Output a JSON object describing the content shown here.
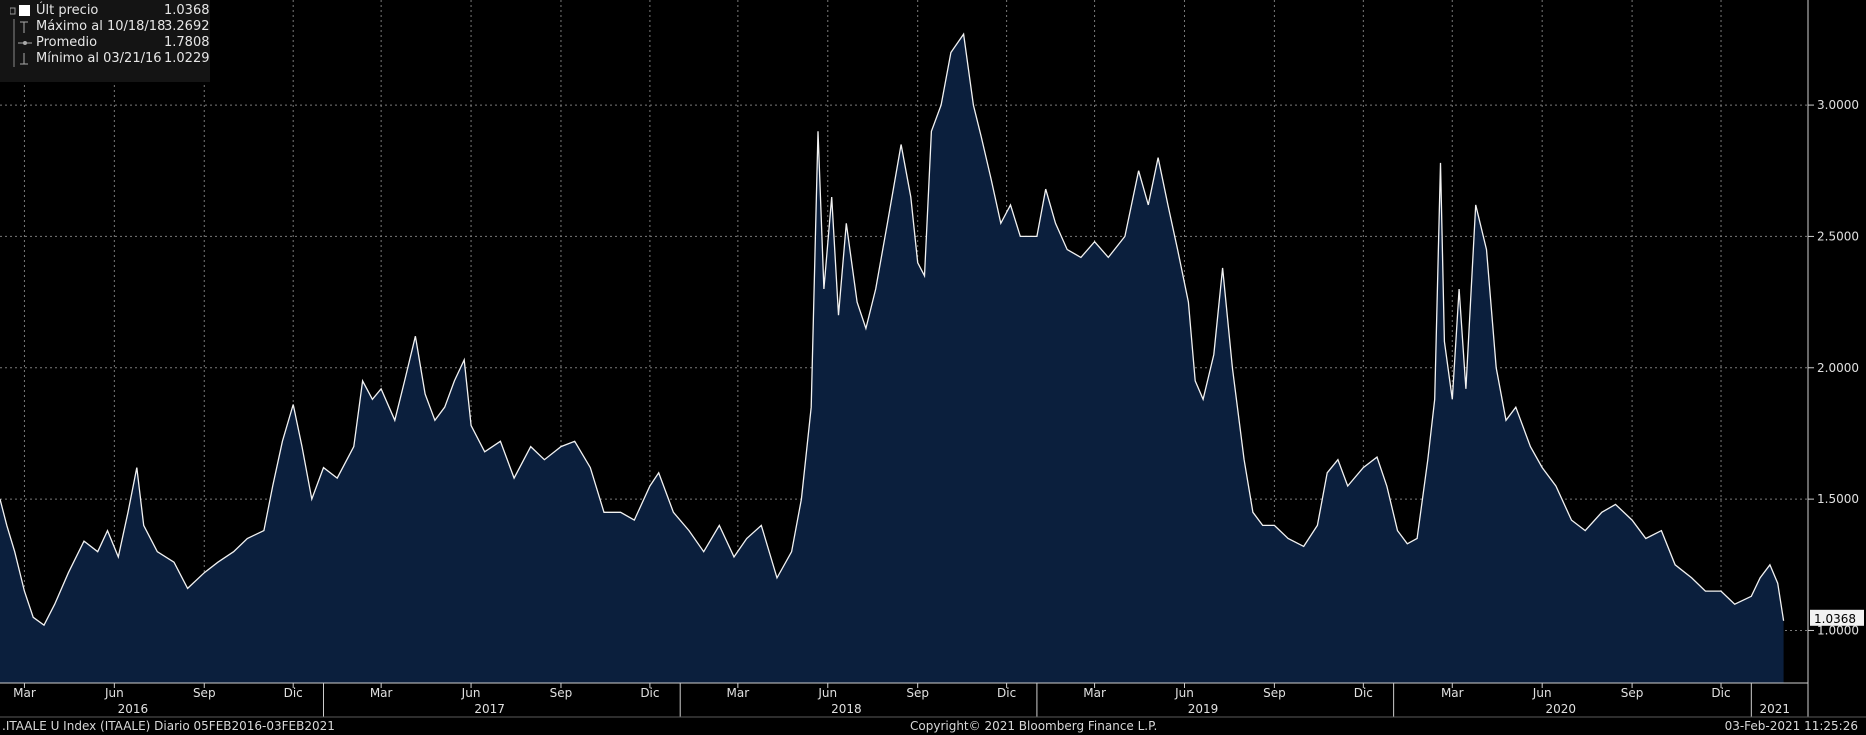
{
  "colors": {
    "background": "#000000",
    "line": "#f2f2f2",
    "fill": "#0b1f3d",
    "grid": "#7a7a7a",
    "legend_bg": "#141414"
  },
  "legend": [
    {
      "icon": "square-icon",
      "label": "Últ precio",
      "value": "1.0368"
    },
    {
      "icon": "max-marker-icon",
      "label": "Máximo al 10/18/18",
      "value": "3.2692"
    },
    {
      "icon": "average-marker-icon",
      "label": "Promedio",
      "value": "1.7808"
    },
    {
      "icon": "min-marker-icon",
      "label": "Mínimo al 03/21/16",
      "value": "1.0229"
    }
  ],
  "footer": {
    "left": ".ITAALE U Index (ITAALE)  Diario 05FEB2016-03FEB2021",
    "center": "Copyright© 2021 Bloomberg Finance L.P.",
    "right": "03-Feb-2021 11:25:26"
  },
  "chart_data": {
    "type": "area",
    "y_axis_side": "right",
    "ylim": [
      0.8,
      3.4
    ],
    "y_ticks": [
      {
        "value": 1.0,
        "label": "1.0000"
      },
      {
        "value": 1.5,
        "label": "1.5000"
      },
      {
        "value": 2.0,
        "label": "2.0000"
      },
      {
        "value": 2.5,
        "label": "2.5000"
      },
      {
        "value": 3.0,
        "label": "3.0000"
      }
    ],
    "last_price_label": "1.0368",
    "xlim": [
      "2016-02-05",
      "2021-02-28"
    ],
    "month_ticks": [
      {
        "date": "2016-03-01",
        "label": "Mar"
      },
      {
        "date": "2016-06-01",
        "label": "Jun"
      },
      {
        "date": "2016-09-01",
        "label": "Sep"
      },
      {
        "date": "2016-12-01",
        "label": "Dic"
      },
      {
        "date": "2017-03-01",
        "label": "Mar"
      },
      {
        "date": "2017-06-01",
        "label": "Jun"
      },
      {
        "date": "2017-09-01",
        "label": "Sep"
      },
      {
        "date": "2017-12-01",
        "label": "Dic"
      },
      {
        "date": "2018-03-01",
        "label": "Mar"
      },
      {
        "date": "2018-06-01",
        "label": "Jun"
      },
      {
        "date": "2018-09-01",
        "label": "Sep"
      },
      {
        "date": "2018-12-01",
        "label": "Dic"
      },
      {
        "date": "2019-03-01",
        "label": "Mar"
      },
      {
        "date": "2019-06-01",
        "label": "Jun"
      },
      {
        "date": "2019-09-01",
        "label": "Sep"
      },
      {
        "date": "2019-12-01",
        "label": "Dic"
      },
      {
        "date": "2020-03-01",
        "label": "Mar"
      },
      {
        "date": "2020-06-01",
        "label": "Jun"
      },
      {
        "date": "2020-09-01",
        "label": "Sep"
      },
      {
        "date": "2020-12-01",
        "label": "Dic"
      }
    ],
    "year_labels": [
      {
        "date": "2016-06-20",
        "label": "2016"
      },
      {
        "date": "2017-06-20",
        "label": "2017"
      },
      {
        "date": "2018-06-20",
        "label": "2018"
      },
      {
        "date": "2019-06-20",
        "label": "2019"
      },
      {
        "date": "2020-06-20",
        "label": "2020"
      },
      {
        "date": "2021-01-25",
        "label": "2021"
      }
    ],
    "year_separators": [
      "2016-01-01",
      "2017-01-01",
      "2018-01-01",
      "2019-01-01",
      "2020-01-01",
      "2021-01-01"
    ],
    "series": [
      {
        "values": [
          [
            "2016-02-05",
            1.5
          ],
          [
            "2016-02-12",
            1.4
          ],
          [
            "2016-02-20",
            1.3
          ],
          [
            "2016-03-01",
            1.15
          ],
          [
            "2016-03-10",
            1.05
          ],
          [
            "2016-03-21",
            1.02
          ],
          [
            "2016-04-01",
            1.1
          ],
          [
            "2016-04-15",
            1.22
          ],
          [
            "2016-05-01",
            1.34
          ],
          [
            "2016-05-15",
            1.3
          ],
          [
            "2016-05-25",
            1.38
          ],
          [
            "2016-06-05",
            1.28
          ],
          [
            "2016-06-15",
            1.45
          ],
          [
            "2016-06-24",
            1.62
          ],
          [
            "2016-07-01",
            1.4
          ],
          [
            "2016-07-15",
            1.3
          ],
          [
            "2016-08-01",
            1.26
          ],
          [
            "2016-08-15",
            1.16
          ],
          [
            "2016-09-01",
            1.22
          ],
          [
            "2016-09-15",
            1.26
          ],
          [
            "2016-10-01",
            1.3
          ],
          [
            "2016-10-15",
            1.35
          ],
          [
            "2016-11-01",
            1.38
          ],
          [
            "2016-11-10",
            1.55
          ],
          [
            "2016-11-20",
            1.72
          ],
          [
            "2016-12-01",
            1.86
          ],
          [
            "2016-12-10",
            1.7
          ],
          [
            "2016-12-20",
            1.5
          ],
          [
            "2017-01-01",
            1.62
          ],
          [
            "2017-01-15",
            1.58
          ],
          [
            "2017-02-01",
            1.7
          ],
          [
            "2017-02-10",
            1.95
          ],
          [
            "2017-02-20",
            1.88
          ],
          [
            "2017-03-01",
            1.92
          ],
          [
            "2017-03-15",
            1.8
          ],
          [
            "2017-03-25",
            1.95
          ],
          [
            "2017-04-05",
            2.12
          ],
          [
            "2017-04-15",
            1.9
          ],
          [
            "2017-04-25",
            1.8
          ],
          [
            "2017-05-05",
            1.85
          ],
          [
            "2017-05-15",
            1.95
          ],
          [
            "2017-05-25",
            2.03
          ],
          [
            "2017-06-01",
            1.78
          ],
          [
            "2017-06-15",
            1.68
          ],
          [
            "2017-07-01",
            1.72
          ],
          [
            "2017-07-15",
            1.58
          ],
          [
            "2017-08-01",
            1.7
          ],
          [
            "2017-08-15",
            1.65
          ],
          [
            "2017-09-01",
            1.7
          ],
          [
            "2017-09-15",
            1.72
          ],
          [
            "2017-10-01",
            1.62
          ],
          [
            "2017-10-15",
            1.45
          ],
          [
            "2017-11-01",
            1.45
          ],
          [
            "2017-11-15",
            1.42
          ],
          [
            "2017-12-01",
            1.55
          ],
          [
            "2017-12-10",
            1.6
          ],
          [
            "2017-12-25",
            1.45
          ],
          [
            "2018-01-10",
            1.38
          ],
          [
            "2018-01-25",
            1.3
          ],
          [
            "2018-02-10",
            1.4
          ],
          [
            "2018-02-25",
            1.28
          ],
          [
            "2018-03-10",
            1.35
          ],
          [
            "2018-03-25",
            1.4
          ],
          [
            "2018-04-10",
            1.2
          ],
          [
            "2018-04-25",
            1.3
          ],
          [
            "2018-05-05",
            1.5
          ],
          [
            "2018-05-15",
            1.85
          ],
          [
            "2018-05-22",
            2.9
          ],
          [
            "2018-05-28",
            2.3
          ],
          [
            "2018-06-05",
            2.65
          ],
          [
            "2018-06-12",
            2.2
          ],
          [
            "2018-06-20",
            2.55
          ],
          [
            "2018-07-01",
            2.25
          ],
          [
            "2018-07-10",
            2.15
          ],
          [
            "2018-07-20",
            2.3
          ],
          [
            "2018-08-01",
            2.55
          ],
          [
            "2018-08-15",
            2.85
          ],
          [
            "2018-08-25",
            2.65
          ],
          [
            "2018-09-01",
            2.4
          ],
          [
            "2018-09-08",
            2.35
          ],
          [
            "2018-09-15",
            2.9
          ],
          [
            "2018-09-25",
            3.0
          ],
          [
            "2018-10-05",
            3.2
          ],
          [
            "2018-10-18",
            3.27
          ],
          [
            "2018-10-28",
            3.0
          ],
          [
            "2018-11-05",
            2.88
          ],
          [
            "2018-11-15",
            2.72
          ],
          [
            "2018-11-25",
            2.55
          ],
          [
            "2018-12-05",
            2.62
          ],
          [
            "2018-12-15",
            2.5
          ],
          [
            "2019-01-01",
            2.5
          ],
          [
            "2019-01-10",
            2.68
          ],
          [
            "2019-01-20",
            2.55
          ],
          [
            "2019-02-01",
            2.45
          ],
          [
            "2019-02-15",
            2.42
          ],
          [
            "2019-03-01",
            2.48
          ],
          [
            "2019-03-15",
            2.42
          ],
          [
            "2019-04-01",
            2.5
          ],
          [
            "2019-04-15",
            2.75
          ],
          [
            "2019-04-25",
            2.62
          ],
          [
            "2019-05-05",
            2.8
          ],
          [
            "2019-05-15",
            2.62
          ],
          [
            "2019-05-25",
            2.45
          ],
          [
            "2019-06-05",
            2.25
          ],
          [
            "2019-06-12",
            1.95
          ],
          [
            "2019-06-20",
            1.88
          ],
          [
            "2019-07-01",
            2.05
          ],
          [
            "2019-07-10",
            2.38
          ],
          [
            "2019-07-20",
            2.0
          ],
          [
            "2019-08-01",
            1.65
          ],
          [
            "2019-08-10",
            1.45
          ],
          [
            "2019-08-20",
            1.4
          ],
          [
            "2019-09-01",
            1.4
          ],
          [
            "2019-09-15",
            1.35
          ],
          [
            "2019-10-01",
            1.32
          ],
          [
            "2019-10-15",
            1.4
          ],
          [
            "2019-10-25",
            1.6
          ],
          [
            "2019-11-05",
            1.65
          ],
          [
            "2019-11-15",
            1.55
          ],
          [
            "2019-12-01",
            1.62
          ],
          [
            "2019-12-15",
            1.66
          ],
          [
            "2019-12-25",
            1.55
          ],
          [
            "2020-01-05",
            1.38
          ],
          [
            "2020-01-15",
            1.33
          ],
          [
            "2020-01-25",
            1.35
          ],
          [
            "2020-02-05",
            1.65
          ],
          [
            "2020-02-12",
            1.88
          ],
          [
            "2020-02-18",
            2.78
          ],
          [
            "2020-02-22",
            2.1
          ],
          [
            "2020-03-01",
            1.88
          ],
          [
            "2020-03-08",
            2.3
          ],
          [
            "2020-03-15",
            1.92
          ],
          [
            "2020-03-25",
            2.62
          ],
          [
            "2020-04-05",
            2.45
          ],
          [
            "2020-04-15",
            2.0
          ],
          [
            "2020-04-25",
            1.8
          ],
          [
            "2020-05-05",
            1.85
          ],
          [
            "2020-05-20",
            1.7
          ],
          [
            "2020-06-01",
            1.62
          ],
          [
            "2020-06-15",
            1.55
          ],
          [
            "2020-07-01",
            1.42
          ],
          [
            "2020-07-15",
            1.38
          ],
          [
            "2020-08-01",
            1.45
          ],
          [
            "2020-08-15",
            1.48
          ],
          [
            "2020-09-01",
            1.42
          ],
          [
            "2020-09-15",
            1.35
          ],
          [
            "2020-10-01",
            1.38
          ],
          [
            "2020-10-15",
            1.25
          ],
          [
            "2020-11-01",
            1.2
          ],
          [
            "2020-11-15",
            1.15
          ],
          [
            "2020-12-01",
            1.15
          ],
          [
            "2020-12-15",
            1.1
          ],
          [
            "2021-01-01",
            1.13
          ],
          [
            "2021-01-10",
            1.2
          ],
          [
            "2021-01-20",
            1.25
          ],
          [
            "2021-01-28",
            1.18
          ],
          [
            "2021-02-03",
            1.0368
          ]
        ]
      }
    ]
  }
}
